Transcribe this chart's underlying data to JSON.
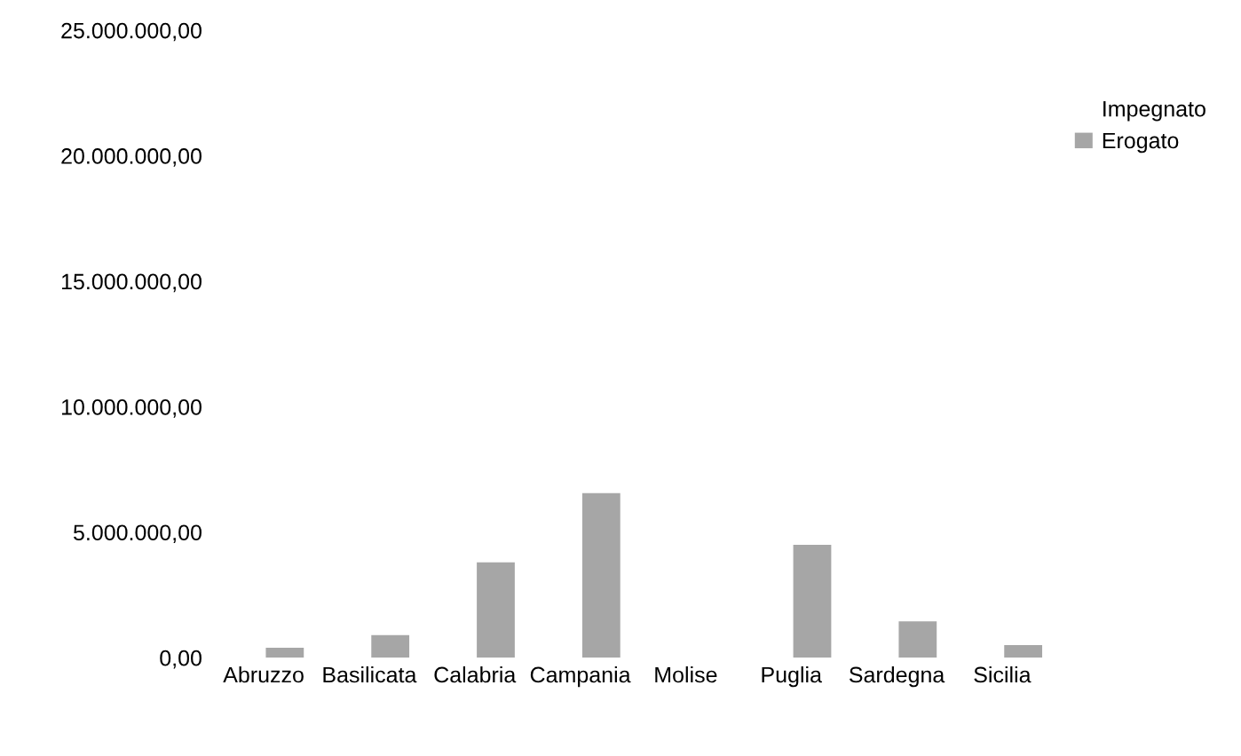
{
  "chart_data": {
    "type": "bar",
    "categories": [
      "Abruzzo",
      "Basilicata",
      "Calabria",
      "Campania",
      "Molise",
      "Puglia",
      "Sardegna",
      "Sicilia"
    ],
    "series": [
      {
        "name": "Impegnato",
        "values": [
          null,
          null,
          null,
          null,
          null,
          null,
          null,
          null
        ]
      },
      {
        "name": "Erogato",
        "color": "#a6a6a6",
        "values": [
          400000,
          900000,
          3800000,
          6560000,
          0,
          4500000,
          1450000,
          500000
        ]
      }
    ],
    "ylim": [
      0,
      25000000
    ],
    "yticks": [
      {
        "value": 0,
        "label": "0,00"
      },
      {
        "value": 5000000,
        "label": "5.000.000,00"
      },
      {
        "value": 10000000,
        "label": "10.000.000,00"
      },
      {
        "value": 15000000,
        "label": "15.000.000,00"
      },
      {
        "value": 20000000,
        "label": "20.000.000,00"
      },
      {
        "value": 25000000,
        "label": "25.000.000,00"
      }
    ],
    "legend": "top right",
    "grid": false
  }
}
